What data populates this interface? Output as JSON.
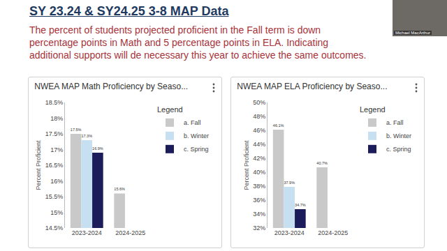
{
  "slide": {
    "title": "SY 23.24 & SY24.25 3-8 MAP Data",
    "text_lines": [
      "The percent of students projected proficient in the Fall term is down",
      "percentage points in Math and 5 percentage points in ELA. Indicating",
      "additional supports will de necessary this year to achieve the same outcomes."
    ],
    "presenter_label": "Michael MacArthur"
  },
  "chart_data": [
    {
      "type": "bar",
      "title": "NWEA MAP Math Proficiency by Seaso...",
      "y_label": "Percent Proficient",
      "categories": [
        "2023-2024",
        "2024-2025"
      ],
      "series": [
        {
          "name": "a. Fall",
          "color": "#c9c9c9",
          "values": [
            17.5,
            15.6
          ],
          "value_labels": [
            "17.5%",
            "15.6%"
          ]
        },
        {
          "name": "b. Winter",
          "color": "#c6e0f2",
          "values": [
            17.3,
            null
          ],
          "value_labels": [
            "17.3%",
            null
          ]
        },
        {
          "name": "c. Spring",
          "color": "#1c1c5a",
          "values": [
            16.9,
            null
          ],
          "value_labels": [
            "16.9%",
            null
          ]
        }
      ],
      "ylim": [
        14.5,
        18.5
      ],
      "yticks": [
        {
          "value": 14.5,
          "label": "14.5%"
        },
        {
          "value": 15,
          "label": "15%"
        },
        {
          "value": 15.5,
          "label": "15.5%"
        },
        {
          "value": 16,
          "label": "16%"
        },
        {
          "value": 16.5,
          "label": "16.5%"
        },
        {
          "value": 17,
          "label": "17%"
        },
        {
          "value": 17.5,
          "label": "17.5%"
        },
        {
          "value": 18,
          "label": "18%"
        },
        {
          "value": 18.5,
          "label": "18.5%"
        }
      ],
      "legend_title": "Legend",
      "legend": "right",
      "grid": false,
      "data_labels": true
    },
    {
      "type": "bar",
      "title": "NWEA MAP ELA Proficiency by Seaso...",
      "y_label": "Percent Proficient",
      "categories": [
        "2023-2024",
        "2024-2025"
      ],
      "series": [
        {
          "name": "a. Fall",
          "color": "#c9c9c9",
          "values": [
            46.1,
            40.7
          ],
          "value_labels": [
            "46.1%",
            "40.7%"
          ]
        },
        {
          "name": "b. Winter",
          "color": "#c6e0f2",
          "values": [
            37.9,
            null
          ],
          "value_labels": [
            "37.9%",
            null
          ]
        },
        {
          "name": "c. Spring",
          "color": "#1c1c5a",
          "values": [
            34.7,
            null
          ],
          "value_labels": [
            "34.7%",
            null
          ]
        }
      ],
      "ylim": [
        32,
        50
      ],
      "yticks": [
        {
          "value": 32,
          "label": "32%"
        },
        {
          "value": 34,
          "label": "34%"
        },
        {
          "value": 36,
          "label": "36%"
        },
        {
          "value": 38,
          "label": "38%"
        },
        {
          "value": 40,
          "label": "40%"
        },
        {
          "value": 42,
          "label": "42%"
        },
        {
          "value": 44,
          "label": "44%"
        },
        {
          "value": 46,
          "label": "46%"
        },
        {
          "value": 48,
          "label": "48%"
        },
        {
          "value": 50,
          "label": "50%"
        }
      ],
      "legend_title": "Legend",
      "legend": "right",
      "grid": false,
      "data_labels": true
    }
  ]
}
